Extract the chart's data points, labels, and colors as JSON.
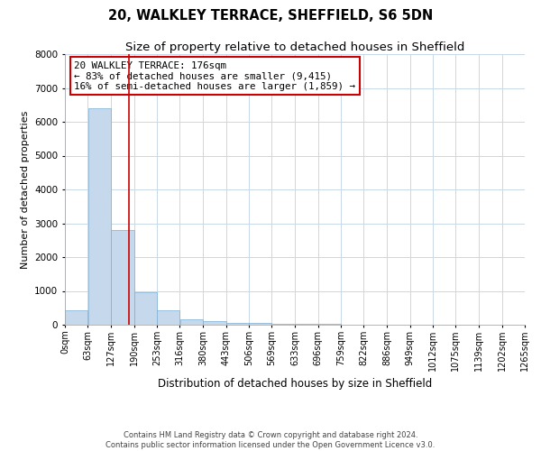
{
  "title": "20, WALKLEY TERRACE, SHEFFIELD, S6 5DN",
  "subtitle": "Size of property relative to detached houses in Sheffield",
  "xlabel": "Distribution of detached houses by size in Sheffield",
  "ylabel": "Number of detached properties",
  "footer_line1": "Contains HM Land Registry data © Crown copyright and database right 2024.",
  "footer_line2": "Contains public sector information licensed under the Open Government Licence v3.0.",
  "annotation_title": "20 WALKLEY TERRACE: 176sqm",
  "annotation_line1": "← 83% of detached houses are smaller (9,415)",
  "annotation_line2": "16% of semi-detached houses are larger (1,859) →",
  "property_size_sqm": 176,
  "bin_edges": [
    0,
    63,
    127,
    190,
    253,
    316,
    380,
    443,
    506,
    569,
    633,
    696,
    759,
    822,
    886,
    949,
    1012,
    1075,
    1139,
    1202,
    1265
  ],
  "bar_heights": [
    440,
    6400,
    2800,
    950,
    430,
    170,
    100,
    65,
    45,
    32,
    22,
    16,
    12,
    9,
    7,
    5,
    4,
    3,
    2,
    2
  ],
  "bar_color": "#c6d9ec",
  "bar_edge_color": "#7aafd4",
  "vline_color": "#cc0000",
  "vline_x": 176,
  "annotation_box_color": "#cc0000",
  "ylim": [
    0,
    8000
  ],
  "yticks": [
    0,
    1000,
    2000,
    3000,
    4000,
    5000,
    6000,
    7000,
    8000
  ],
  "grid_color": "#c8d8e8",
  "title_fontsize": 10.5,
  "subtitle_fontsize": 9.5,
  "tick_label_fontsize": 7,
  "ylabel_fontsize": 8,
  "xlabel_fontsize": 8.5,
  "annotation_fontsize": 7.8,
  "footer_fontsize": 6
}
